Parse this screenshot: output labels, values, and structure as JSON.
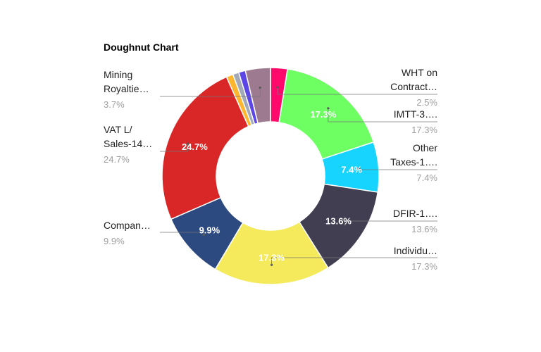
{
  "chart_data": {
    "type": "pie",
    "subtype": "doughnut",
    "title": "Doughnut Chart",
    "legend": "none",
    "slices": [
      {
        "label": "WHT on Contract…",
        "label_lines": [
          "WHT on",
          "Contract…"
        ],
        "value": 2.5,
        "percent_label": "2.5%",
        "color": "#ff0a6c",
        "side": "right",
        "show_value_label": false
      },
      {
        "label": "IMTT-3….",
        "label_lines": [
          "IMTT-3…."
        ],
        "value": 17.3,
        "percent_label": "17.3%",
        "color": "#6eff63",
        "side": "right",
        "show_value_label": true
      },
      {
        "label": "Other Taxes-1….",
        "label_lines": [
          "Other",
          "Taxes-1…."
        ],
        "value": 7.4,
        "percent_label": "7.4%",
        "color": "#17d4ff",
        "side": "right",
        "show_value_label": true
      },
      {
        "label": "DFIR-1….",
        "label_lines": [
          "DFIR-1…."
        ],
        "value": 13.6,
        "percent_label": "13.6%",
        "color": "#423e52",
        "side": "right",
        "show_value_label": true
      },
      {
        "label": "Individu…",
        "label_lines": [
          "Individu…"
        ],
        "value": 17.3,
        "percent_label": "17.3%",
        "color": "#f4ea5b",
        "side": "right",
        "show_value_label": true
      },
      {
        "label": "Compan…",
        "label_lines": [
          "Compan…"
        ],
        "value": 9.9,
        "percent_label": "9.9%",
        "color": "#2c4a80",
        "side": "left",
        "show_value_label": true
      },
      {
        "label": "VAT L/ Sales-14…",
        "label_lines": [
          "VAT L/",
          "Sales-14…"
        ],
        "value": 24.7,
        "percent_label": "24.7%",
        "color": "#d92727",
        "side": "left",
        "show_value_label": true
      },
      {
        "label": "",
        "label_lines": [],
        "value": 1.0,
        "percent_label": "",
        "color": "#ffb62e",
        "side": "none",
        "show_value_label": false
      },
      {
        "label": "",
        "label_lines": [],
        "value": 0.9,
        "percent_label": "",
        "color": "#a4a9b8",
        "side": "none",
        "show_value_label": false
      },
      {
        "label": "",
        "label_lines": [],
        "value": 1.0,
        "percent_label": "",
        "color": "#5d46e6",
        "side": "none",
        "show_value_label": false
      },
      {
        "label": "Mining Royaltie…",
        "label_lines": [
          "Mining",
          "Royaltie…"
        ],
        "value": 3.7,
        "percent_label": "3.7%",
        "color": "#9d7a8f",
        "side": "left",
        "show_value_label": false
      }
    ]
  }
}
